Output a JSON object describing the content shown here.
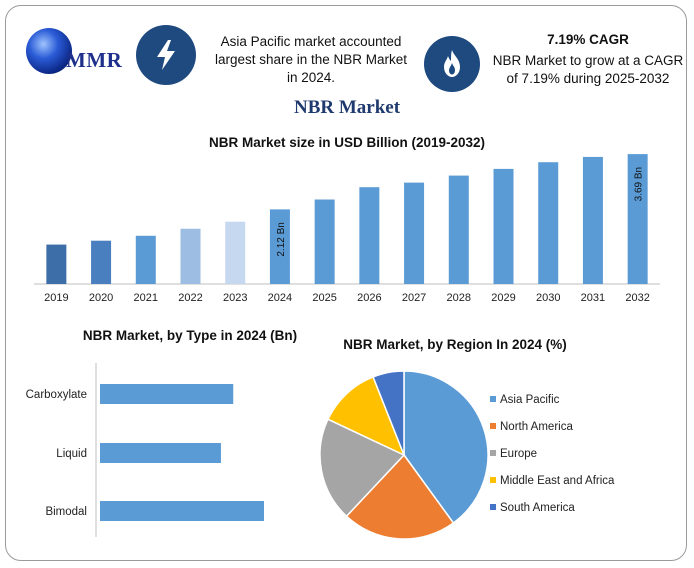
{
  "header": {
    "logo_text": "MMR",
    "info1": {
      "icon": "lightning-icon",
      "line1": "Asia Pacific market accounted",
      "line2": "largest share in the NBR Market",
      "line3": "in 2024."
    },
    "info2": {
      "icon": "flame-icon",
      "title": "7.19% CAGR",
      "line1": "NBR Market to grow at a CAGR",
      "line2": "of 7.19% during 2025-2032"
    }
  },
  "main_title": "NBR Market",
  "colors": {
    "navy": "#1f4a80",
    "bar_blue": "#5b9bd5",
    "dark_blue": "#4472c4",
    "orange": "#ed7d31",
    "gray": "#a5a5a5",
    "yellow": "#ffc000"
  },
  "chart_data": [
    {
      "type": "bar",
      "title": "NBR Market size in USD Billion (2019-2032)",
      "categories": [
        "2019",
        "2020",
        "2021",
        "2022",
        "2023",
        "2024",
        "2025",
        "2026",
        "2027",
        "2028",
        "2029",
        "2030",
        "2031",
        "2032"
      ],
      "values": [
        1.12,
        1.23,
        1.37,
        1.57,
        1.77,
        2.12,
        2.4,
        2.75,
        2.88,
        3.08,
        3.27,
        3.46,
        3.61,
        3.69
      ],
      "bar_colors": [
        "#3d6ea8",
        "#4a7fbf",
        "#5b9bd5",
        "#9dbde3",
        "#c5d8ef",
        "#5b9bd5",
        "#5b9bd5",
        "#5b9bd5",
        "#5b9bd5",
        "#5b9bd5",
        "#5b9bd5",
        "#5b9bd5",
        "#5b9bd5",
        "#5b9bd5"
      ],
      "data_labels": [
        {
          "index": 5,
          "text": "2.12 Bn"
        },
        {
          "index": 13,
          "text": "3.69 Bn"
        }
      ],
      "ylim": [
        0,
        3.75
      ],
      "grid": false
    },
    {
      "type": "bar",
      "orientation": "horizontal",
      "title": "NBR Market, by Type in 2024 (Bn)",
      "categories": [
        "Carboxylate",
        "Liquid",
        "Bimodal"
      ],
      "values": [
        1.3,
        1.18,
        1.6
      ],
      "xlim": [
        0,
        2.0
      ],
      "grid": false
    },
    {
      "type": "pie",
      "title": "NBR Market, by Region In 2024 (%)",
      "labels": [
        "Asia Pacific",
        "North America",
        "Europe",
        "Middle East and Africa",
        "South America"
      ],
      "values": [
        40,
        22,
        20,
        12,
        6
      ],
      "colors": [
        "#5b9bd5",
        "#ed7d31",
        "#a5a5a5",
        "#ffc000",
        "#4472c4"
      ],
      "legend": "right"
    }
  ]
}
